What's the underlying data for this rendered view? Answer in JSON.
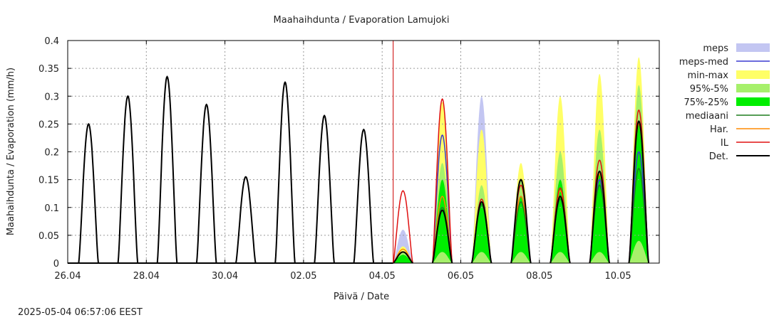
{
  "chart_data": {
    "type": "area",
    "title": "Maahaihdunta / Evaporation  Lamujoki",
    "xlabel": "Päivä / Date",
    "ylabel": "Maahaihdunta / Evaporation (mm/h)",
    "timestamp": "2025-05-04  06:57:06 EEST",
    "x_unit": "days from 2025-04-26 00:00",
    "xlim": [
      0,
      15.05
    ],
    "ylim": [
      0,
      0.4
    ],
    "grid": true,
    "legend_position": "right",
    "x_ticks": [
      {
        "x": 0,
        "label": "26.04"
      },
      {
        "x": 2,
        "label": "28.04"
      },
      {
        "x": 4,
        "label": "30.04"
      },
      {
        "x": 6,
        "label": "02.05"
      },
      {
        "x": 8,
        "label": "04.05"
      },
      {
        "x": 10,
        "label": "06.05"
      },
      {
        "x": 12,
        "label": "08.05"
      },
      {
        "x": 14,
        "label": "10.05"
      }
    ],
    "y_ticks": [
      {
        "y": 0,
        "label": "0"
      },
      {
        "y": 0.05,
        "label": "0.05"
      },
      {
        "y": 0.1,
        "label": "0.1"
      },
      {
        "y": 0.15,
        "label": "0.15"
      },
      {
        "y": 0.2,
        "label": "0.2"
      },
      {
        "y": 0.25,
        "label": "0.25"
      },
      {
        "y": 0.3,
        "label": "0.3"
      },
      {
        "y": 0.35,
        "label": "0.35"
      },
      {
        "y": 0.4,
        "label": "0.4"
      }
    ],
    "forecast_start_x": 8.28,
    "observed": [
      {
        "day": 0,
        "peak": 0.25
      },
      {
        "day": 1,
        "peak": 0.3
      },
      {
        "day": 2,
        "peak": 0.335
      },
      {
        "day": 3,
        "peak": 0.285
      },
      {
        "day": 4,
        "peak": 0.155
      },
      {
        "day": 5,
        "peak": 0.325
      },
      {
        "day": 6,
        "peak": 0.265
      },
      {
        "day": 7,
        "peak": 0.24
      }
    ],
    "forecast": [
      {
        "day": 8,
        "minmax": [
          0.0,
          0.03
        ],
        "p95_5": [
          0.0,
          0.02
        ],
        "p75_25": [
          0.0,
          0.015
        ],
        "meps": [
          0.0,
          0.06
        ],
        "meps_med": 0.02,
        "mediaani": 0.02,
        "har": 0.025,
        "il": 0.13,
        "det": 0.02
      },
      {
        "day": 9,
        "minmax": [
          0.0,
          0.29
        ],
        "p95_5": [
          0.0,
          0.18
        ],
        "p75_25": [
          0.02,
          0.15
        ],
        "meps": [
          0.0,
          0.235
        ],
        "meps_med": 0.23,
        "mediaani": 0.1,
        "har": 0.12,
        "il": 0.295,
        "det": 0.095
      },
      {
        "day": 10,
        "minmax": [
          0.0,
          0.24
        ],
        "p95_5": [
          0.0,
          0.14
        ],
        "p75_25": [
          0.02,
          0.11
        ],
        "meps": [
          0.0,
          0.3
        ],
        "meps_med": 0.11,
        "mediaani": 0.105,
        "har": 0.11,
        "il": 0.115,
        "det": 0.11
      },
      {
        "day": 11,
        "minmax": [
          0.0,
          0.18
        ],
        "p95_5": [
          0.0,
          0.15
        ],
        "p75_25": [
          0.02,
          0.12
        ],
        "meps": [
          0.0,
          0.16
        ],
        "meps_med": 0.12,
        "mediaani": 0.11,
        "har": 0.12,
        "il": 0.14,
        "det": 0.15
      },
      {
        "day": 12,
        "minmax": [
          0.0,
          0.3
        ],
        "p95_5": [
          0.0,
          0.2
        ],
        "p75_25": [
          0.02,
          0.15
        ],
        "meps": [
          0.0,
          0.22
        ],
        "meps_med": 0.12,
        "mediaani": 0.115,
        "har": 0.13,
        "il": 0.135,
        "det": 0.12
      },
      {
        "day": 13,
        "minmax": [
          0.0,
          0.34
        ],
        "p95_5": [
          0.0,
          0.24
        ],
        "p75_25": [
          0.02,
          0.16
        ],
        "meps": [
          0.0,
          0.25
        ],
        "meps_med": 0.15,
        "mediaani": 0.14,
        "har": 0.16,
        "il": 0.185,
        "det": 0.165
      },
      {
        "day": 14,
        "minmax": [
          0.0,
          0.37
        ],
        "p95_5": [
          0.0,
          0.32
        ],
        "p75_25": [
          0.04,
          0.25
        ],
        "meps": [
          0.0,
          0.3
        ],
        "meps_med": 0.2,
        "mediaani": 0.17,
        "har": 0.25,
        "il": 0.275,
        "det": 0.255
      }
    ],
    "legend": [
      {
        "key": "meps",
        "label": "meps",
        "type": "band",
        "color": "#c3c6f2"
      },
      {
        "key": "meps_med",
        "label": "meps-med",
        "type": "line",
        "color": "#3a3ad0"
      },
      {
        "key": "minmax",
        "label": "min-max",
        "type": "band",
        "color": "#ffff66"
      },
      {
        "key": "p95_5",
        "label": "95%-5%",
        "type": "band",
        "color": "#a6f06b"
      },
      {
        "key": "p75_25",
        "label": "75%-25%",
        "type": "band",
        "color": "#00ee00"
      },
      {
        "key": "mediaani",
        "label": "mediaani",
        "type": "line",
        "color": "#1f7d1f"
      },
      {
        "key": "har",
        "label": "Har.",
        "type": "line",
        "color": "#ff8a00"
      },
      {
        "key": "il",
        "label": "IL",
        "type": "line",
        "color": "#e01010"
      },
      {
        "key": "det",
        "label": "Det.",
        "type": "line",
        "color": "#000000"
      }
    ]
  }
}
